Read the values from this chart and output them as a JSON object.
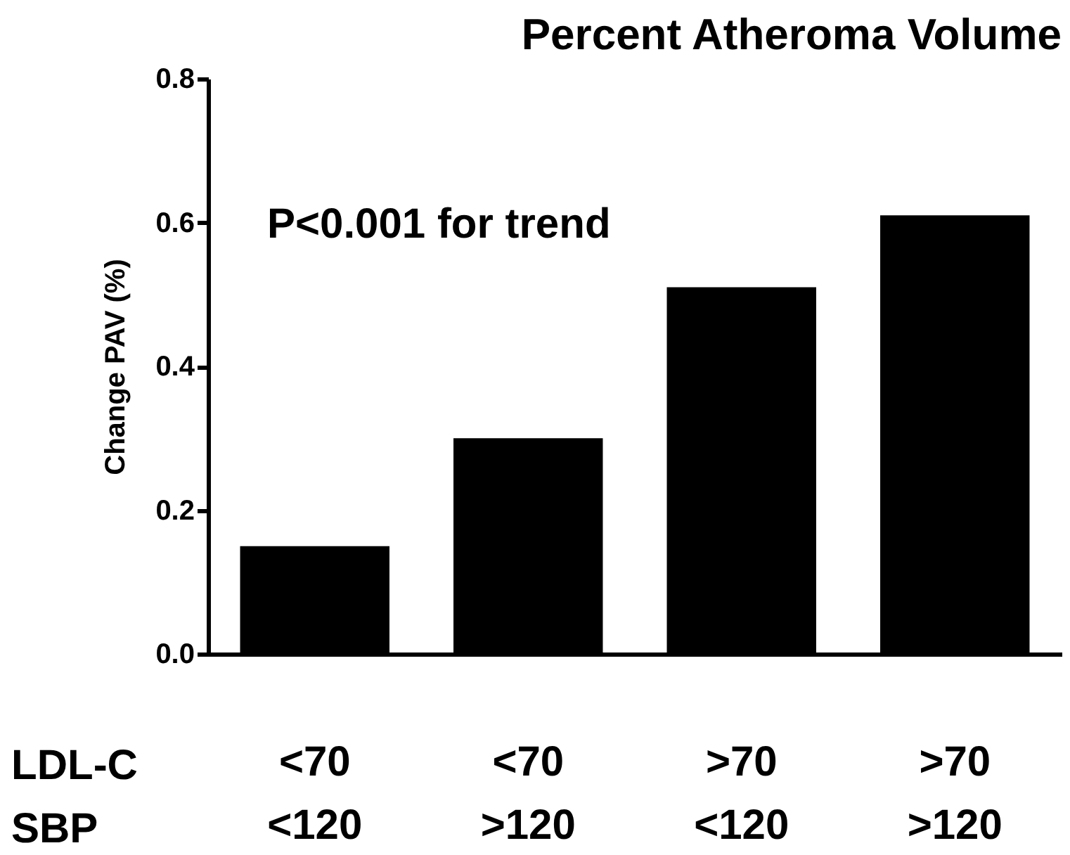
{
  "chart_data": {
    "type": "bar",
    "title": "Percent Atheroma Volume",
    "ylabel": "Change PAV (%)",
    "categories": [
      "<70\n<120",
      "<70\n>120",
      ">70\n<120",
      ">70\n>120"
    ],
    "values": [
      0.15,
      0.3,
      0.51,
      0.61
    ],
    "color": "#000000",
    "ylim": [
      0,
      0.8
    ],
    "yticks": [
      {
        "value": 0,
        "label": "0.0"
      },
      {
        "value": 0.2,
        "label": "0.2"
      },
      {
        "value": 0.4,
        "label": "0.4"
      },
      {
        "value": 0.6,
        "label": "0.6"
      },
      {
        "value": 0.8,
        "label": "0.8"
      }
    ],
    "annotations": [
      "P<0.001 for trend",
      "LDL-C",
      "SBP"
    ],
    "grid": false
  }
}
